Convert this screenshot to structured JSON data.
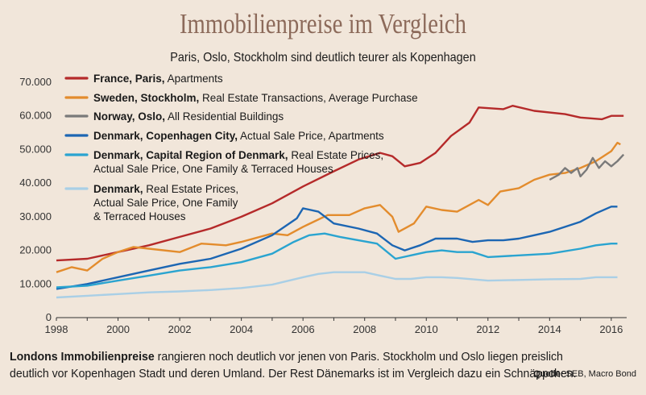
{
  "header": {
    "title": "Immobilienpreise im Vergleich",
    "subtitle": "Paris, Oslo, Stockholm sind deutlich teurer als Kopenhagen"
  },
  "footer": {
    "lead_bold": "Londons Immobilienpreise",
    "text": " rangieren noch deutlich vor jenen von Paris. Stockholm und Oslo liegen preislich deutlich vor Kopenhagen Stadt und deren Umland. Der Rest Dänemarks ist im Vergleich dazu ein Schnäppchen.",
    "source_label": "Quelle:",
    "source_value": "SEB, Macro Bond"
  },
  "chart_data": {
    "type": "line",
    "xlim": [
      1998,
      2016.5
    ],
    "ylim": [
      0,
      70000
    ],
    "x_ticks": [
      1998,
      2000,
      2002,
      2004,
      2006,
      2008,
      2010,
      2012,
      2014,
      2016
    ],
    "y_ticks": [
      0,
      10000,
      20000,
      30000,
      40000,
      50000,
      60000,
      70000
    ],
    "y_tick_labels": [
      "0",
      "10.000",
      "20.000",
      "30.000",
      "40.000",
      "50.000",
      "60.000",
      "70.000"
    ],
    "grid": false,
    "legend_position": "top-left",
    "series": [
      {
        "name_bold": "France, Paris,",
        "name_rest": " Apartments",
        "color": "#b52a2a",
        "points": [
          [
            1998,
            17000
          ],
          [
            1999,
            17500
          ],
          [
            2000,
            19500
          ],
          [
            2001,
            21500
          ],
          [
            2002,
            24000
          ],
          [
            2003,
            26500
          ],
          [
            2004,
            30000
          ],
          [
            2005,
            34000
          ],
          [
            2006,
            39000
          ],
          [
            2007,
            43500
          ],
          [
            2007.8,
            47000
          ],
          [
            2008.5,
            49000
          ],
          [
            2008.9,
            48000
          ],
          [
            2009.3,
            45000
          ],
          [
            2009.8,
            46000
          ],
          [
            2010.3,
            49000
          ],
          [
            2010.8,
            54000
          ],
          [
            2011.4,
            58000
          ],
          [
            2011.7,
            62500
          ],
          [
            2012.5,
            62000
          ],
          [
            2012.8,
            63000
          ],
          [
            2013.5,
            61500
          ],
          [
            2014.5,
            60500
          ],
          [
            2015,
            59500
          ],
          [
            2015.7,
            59000
          ],
          [
            2016,
            60000
          ],
          [
            2016.4,
            60000
          ]
        ]
      },
      {
        "name_bold": "Sweden, Stockholm,",
        "name_rest": " Real Estate Transactions, Average Purchase",
        "color": "#e38c2d",
        "points": [
          [
            1998,
            13500
          ],
          [
            1998.5,
            15000
          ],
          [
            1999,
            14000
          ],
          [
            1999.5,
            17500
          ],
          [
            2000,
            19500
          ],
          [
            2000.5,
            21000
          ],
          [
            2001,
            20500
          ],
          [
            2002,
            19500
          ],
          [
            2002.7,
            22000
          ],
          [
            2003.5,
            21500
          ],
          [
            2004,
            22500
          ],
          [
            2005,
            25000
          ],
          [
            2005.5,
            24500
          ],
          [
            2006,
            27000
          ],
          [
            2006.8,
            30500
          ],
          [
            2007.5,
            30500
          ],
          [
            2008,
            32500
          ],
          [
            2008.5,
            33500
          ],
          [
            2008.9,
            30000
          ],
          [
            2009.1,
            25500
          ],
          [
            2009.6,
            28000
          ],
          [
            2010,
            33000
          ],
          [
            2010.5,
            32000
          ],
          [
            2011,
            31500
          ],
          [
            2011.7,
            35000
          ],
          [
            2012,
            33500
          ],
          [
            2012.4,
            37500
          ],
          [
            2013,
            38500
          ],
          [
            2013.5,
            41000
          ],
          [
            2014,
            42500
          ],
          [
            2014.5,
            43000
          ],
          [
            2015,
            44500
          ],
          [
            2015.5,
            46500
          ],
          [
            2016,
            49500
          ],
          [
            2016.2,
            52000
          ],
          [
            2016.3,
            51500
          ]
        ]
      },
      {
        "name_bold": "Norway, Oslo,",
        "name_rest": " All Residential Buildings",
        "color": "#7a7a7a",
        "points": [
          [
            2014,
            41000
          ],
          [
            2014.3,
            42500
          ],
          [
            2014.5,
            44500
          ],
          [
            2014.7,
            43000
          ],
          [
            2014.9,
            44500
          ],
          [
            2015,
            42000
          ],
          [
            2015.2,
            44000
          ],
          [
            2015.4,
            47500
          ],
          [
            2015.6,
            44500
          ],
          [
            2015.8,
            46500
          ],
          [
            2016,
            45000
          ],
          [
            2016.2,
            46500
          ],
          [
            2016.4,
            48500
          ]
        ]
      },
      {
        "name_bold": "Denmark, Copenhagen City,",
        "name_rest": " Actual Sale Price, Apartments",
        "color": "#1c66b3",
        "points": [
          [
            1998,
            8500
          ],
          [
            1999,
            10000
          ],
          [
            2000,
            12000
          ],
          [
            2001,
            14000
          ],
          [
            2002,
            16000
          ],
          [
            2003,
            17500
          ],
          [
            2004,
            20500
          ],
          [
            2005,
            24500
          ],
          [
            2005.8,
            29500
          ],
          [
            2006,
            32500
          ],
          [
            2006.5,
            31500
          ],
          [
            2007,
            28000
          ],
          [
            2007.8,
            26500
          ],
          [
            2008.4,
            25000
          ],
          [
            2008.9,
            21500
          ],
          [
            2009.3,
            20000
          ],
          [
            2009.8,
            21500
          ],
          [
            2010.3,
            23500
          ],
          [
            2011,
            23500
          ],
          [
            2011.5,
            22500
          ],
          [
            2012,
            23000
          ],
          [
            2012.5,
            23000
          ],
          [
            2013,
            23500
          ],
          [
            2013.5,
            24500
          ],
          [
            2014,
            25500
          ],
          [
            2014.5,
            27000
          ],
          [
            2015,
            28500
          ],
          [
            2015.5,
            31000
          ],
          [
            2016,
            33000
          ],
          [
            2016.2,
            33000
          ]
        ]
      },
      {
        "name_bold": "Denmark, Capital Region of Denmark,",
        "name_rest": " Real Estate Prices, Actual Sale Price, One Family & Terraced Houses",
        "color": "#2aa4d0",
        "points": [
          [
            1998,
            9000
          ],
          [
            1999,
            9500
          ],
          [
            2000,
            11000
          ],
          [
            2001,
            12500
          ],
          [
            2002,
            14000
          ],
          [
            2003,
            15000
          ],
          [
            2004,
            16500
          ],
          [
            2005,
            19000
          ],
          [
            2005.7,
            22500
          ],
          [
            2006.2,
            24500
          ],
          [
            2006.7,
            25000
          ],
          [
            2007.2,
            24000
          ],
          [
            2007.8,
            23000
          ],
          [
            2008.4,
            22000
          ],
          [
            2009,
            17500
          ],
          [
            2009.5,
            18500
          ],
          [
            2010,
            19500
          ],
          [
            2010.5,
            20000
          ],
          [
            2011,
            19500
          ],
          [
            2011.5,
            19500
          ],
          [
            2012,
            18000
          ],
          [
            2013,
            18500
          ],
          [
            2014,
            19000
          ],
          [
            2015,
            20500
          ],
          [
            2015.5,
            21500
          ],
          [
            2016,
            22000
          ],
          [
            2016.2,
            22000
          ]
        ]
      },
      {
        "name_bold": "Denmark,",
        "name_rest": " Real Estate Prices, Actual Sale Price, One Family & Terraced Houses",
        "color": "#a9cfe6",
        "points": [
          [
            1998,
            6000
          ],
          [
            1999,
            6500
          ],
          [
            2000,
            7000
          ],
          [
            2001,
            7500
          ],
          [
            2002,
            7800
          ],
          [
            2003,
            8200
          ],
          [
            2004,
            8800
          ],
          [
            2005,
            9800
          ],
          [
            2006,
            12000
          ],
          [
            2006.5,
            13000
          ],
          [
            2007,
            13500
          ],
          [
            2007.5,
            13500
          ],
          [
            2008,
            13500
          ],
          [
            2008.5,
            12500
          ],
          [
            2009,
            11500
          ],
          [
            2009.5,
            11500
          ],
          [
            2010,
            12000
          ],
          [
            2010.5,
            12000
          ],
          [
            2011,
            11800
          ],
          [
            2012,
            11000
          ],
          [
            2013,
            11200
          ],
          [
            2014,
            11400
          ],
          [
            2015,
            11500
          ],
          [
            2015.5,
            12000
          ],
          [
            2016,
            12000
          ],
          [
            2016.2,
            12000
          ]
        ]
      }
    ]
  }
}
